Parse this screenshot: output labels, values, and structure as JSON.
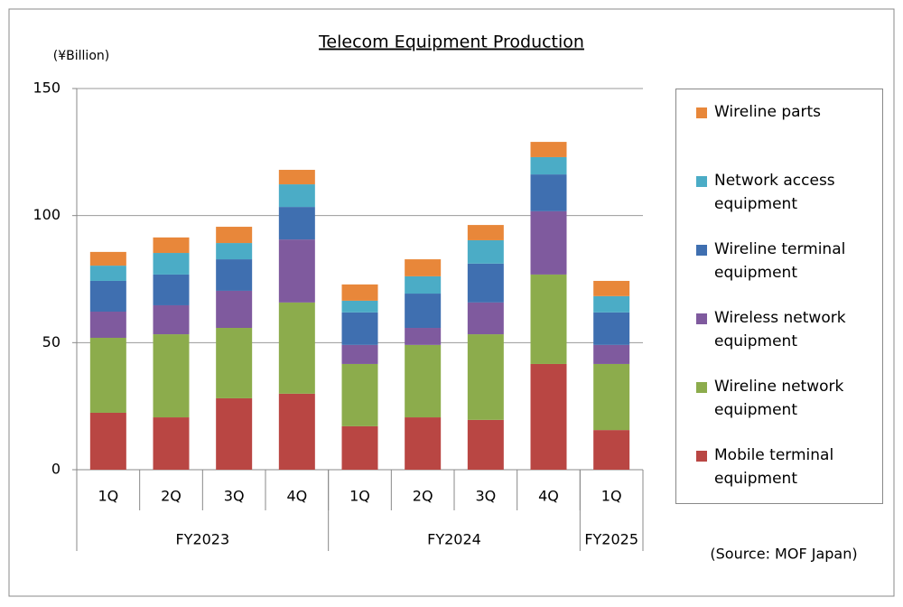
{
  "chart_data": {
    "type": "stacked-bar",
    "title": "Telecom Equipment Production",
    "y_unit": "(¥Billion)",
    "source": "(Source: MOF Japan)",
    "groups": [
      {
        "label": "FY2023",
        "categories": [
          "1Q",
          "2Q",
          "3Q",
          "4Q"
        ]
      },
      {
        "label": "FY2024",
        "categories": [
          "1Q",
          "2Q",
          "3Q",
          "4Q"
        ]
      },
      {
        "label": "FY2025",
        "categories": [
          "1Q"
        ]
      }
    ],
    "ylim": [
      0,
      150
    ],
    "yticks": [
      0,
      50,
      100,
      150
    ],
    "grid": true,
    "series": [
      {
        "name": "Mobile terminal equipment",
        "color": "#b94643",
        "values": [
          22.4,
          20.6,
          28.1,
          29.9,
          17.1,
          20.6,
          19.6,
          41.6,
          15.6
        ]
      },
      {
        "name": "Wireline network equipment",
        "color": "#8cac4c",
        "values": [
          29.5,
          32.7,
          27.7,
          35.9,
          24.5,
          28.5,
          33.7,
          35.2,
          26
        ]
      },
      {
        "name": "Wireless network equipment",
        "color": "#7f5a9e",
        "values": [
          10.3,
          11.4,
          14.6,
          24.8,
          7.5,
          6.7,
          12.5,
          24.9,
          7.5
        ]
      },
      {
        "name": "Wireline terminal equipment",
        "color": "#3f6fb0",
        "values": [
          12.1,
          12.1,
          12.4,
          12.8,
          12.8,
          13.5,
          15.3,
          14.5,
          12.8
        ]
      },
      {
        "name": "Network access equipment",
        "color": "#4bacc6",
        "values": [
          6,
          8.5,
          6.4,
          8.9,
          4.6,
          6.8,
          9.2,
          6.8,
          6.4
        ]
      },
      {
        "name": "Wireline parts",
        "color": "#e8873a",
        "values": [
          5.4,
          6.1,
          6.4,
          5.7,
          6.4,
          6.7,
          6,
          6,
          6
        ]
      }
    ]
  }
}
